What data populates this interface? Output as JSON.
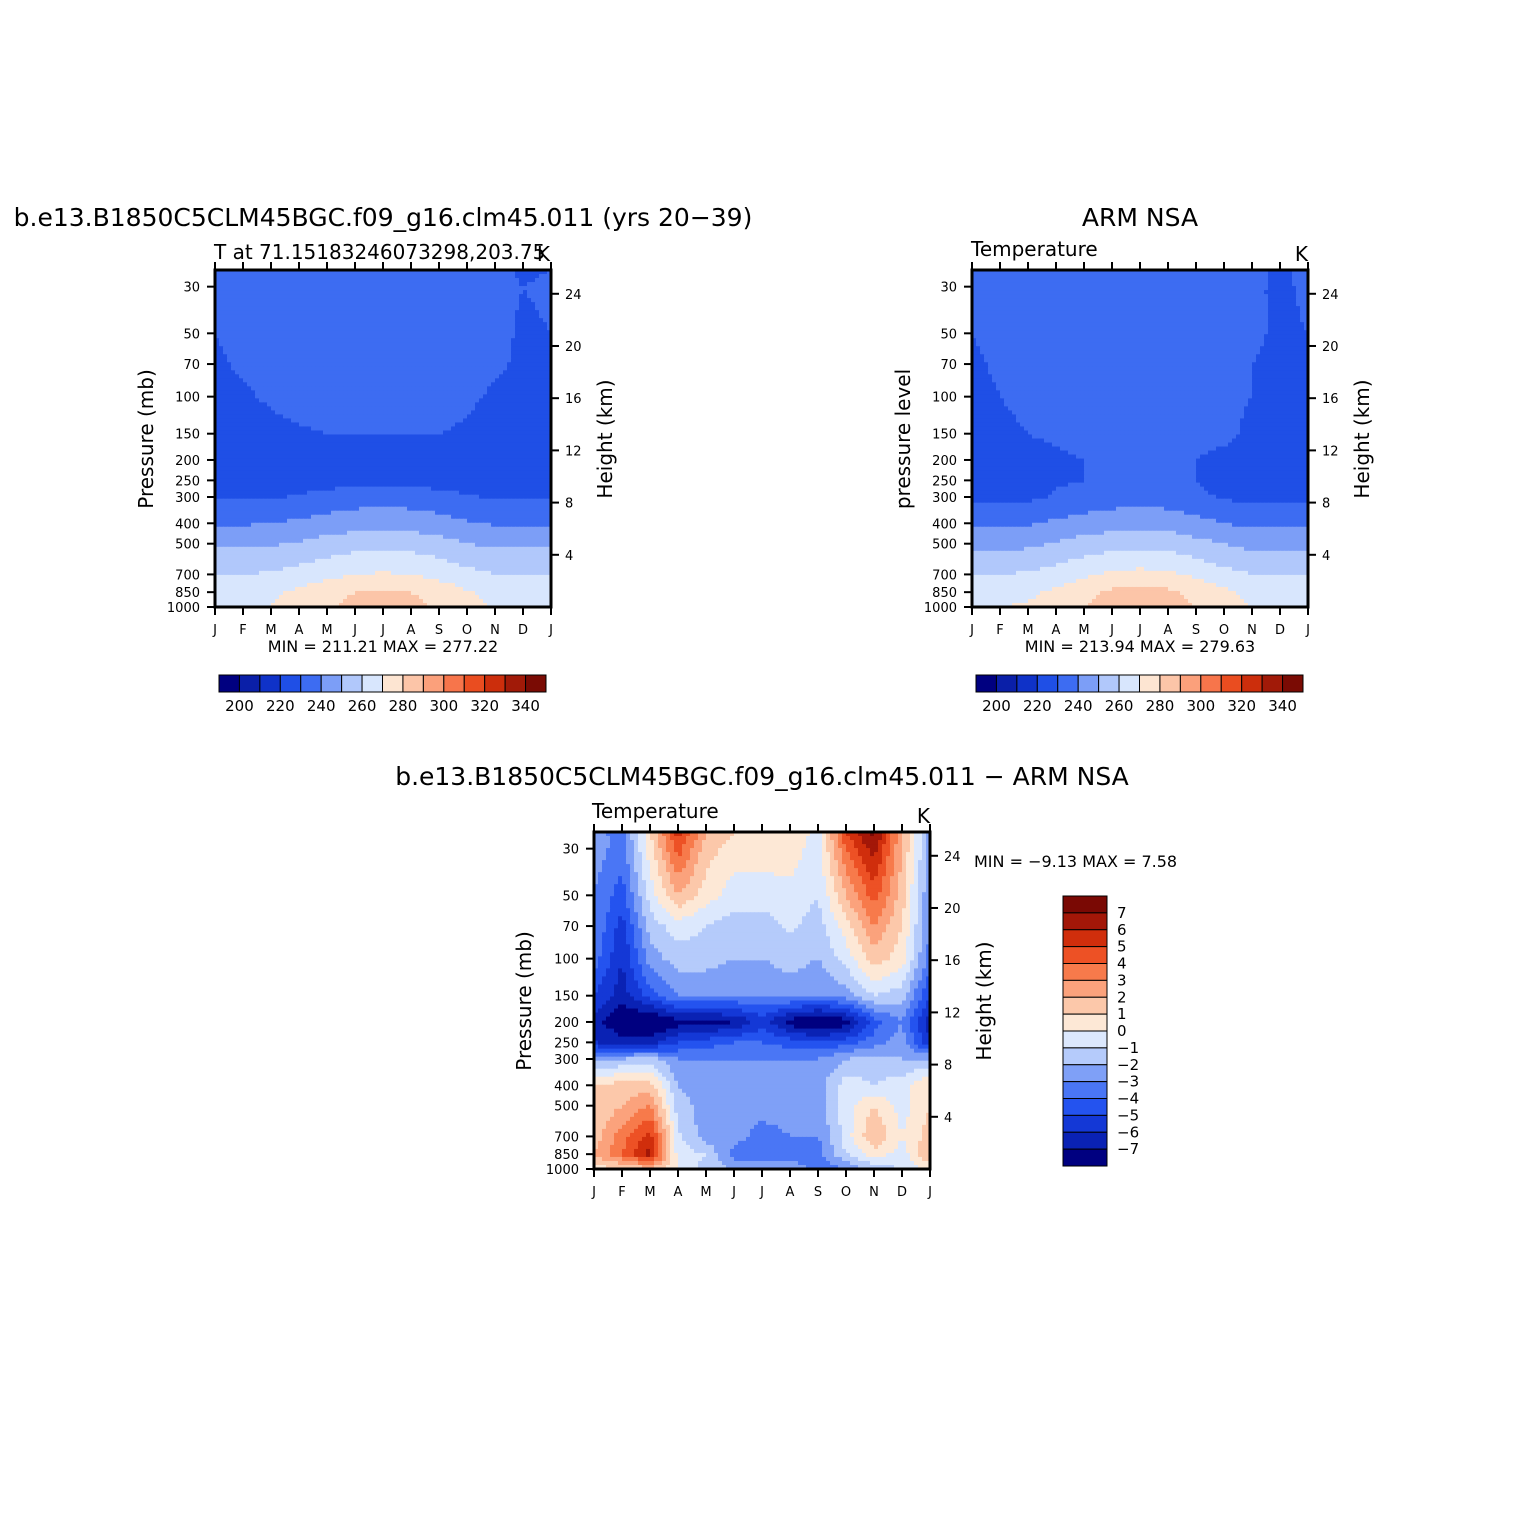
{
  "colors": {
    "temp_levels": [
      "#000080",
      "#0a1fa8",
      "#0f32c8",
      "#1f4fe6",
      "#3d6cf2",
      "#7c9ef7",
      "#b1c8fb",
      "#d8e6fd",
      "#fde5d2",
      "#fcc5a8",
      "#fba07b",
      "#f7754b",
      "#ea4d20",
      "#cc2e0c",
      "#a11a08",
      "#7a0b04"
    ],
    "diff_levels": [
      "#000080",
      "#0a22b4",
      "#1438d6",
      "#2453ef",
      "#4a76f5",
      "#7fa0f7",
      "#b5cbfb",
      "#dce8fd",
      "#fde8d6",
      "#fcc8aa",
      "#fba27c",
      "#f77a4b",
      "#ed5125",
      "#d02e0c",
      "#a31708",
      "#7a0904"
    ]
  },
  "panels": [
    {
      "title": "b.e13.B1850C5CLM45BGC.f09_g16.clm45.011 (yrs 20−39)",
      "subtitle_left": "T at 71.15183246073298,203.75",
      "subtitle_right": "K",
      "ylabel": "Pressure (mb)",
      "ylabel_right": "Height (km)",
      "stats": "MIN = 211.21 MAX = 277.22"
    },
    {
      "title": "ARM NSA",
      "subtitle_left": "Temperature",
      "subtitle_right": "K",
      "ylabel": "pressure level",
      "ylabel_right": "Height (km)",
      "stats": "MIN = 213.94 MAX = 279.63"
    },
    {
      "title": "b.e13.B1850C5CLM45BGC.f09_g16.clm45.011 − ARM NSA",
      "subtitle_left": "Temperature",
      "subtitle_right": "K",
      "ylabel": "Pressure (mb)",
      "ylabel_right": "Height (km)",
      "stats": "MIN =   −9.13 MAX =    7.58"
    }
  ],
  "chart_data": [
    {
      "type": "heatmap",
      "title": "b.e13.B1850C5CLM45BGC.f09_g16.clm45.011 (yrs 20−39)",
      "subtitle": "T at 71.15183246073298,203.75",
      "units": "K",
      "x": [
        "J",
        "F",
        "M",
        "A",
        "M",
        "J",
        "J",
        "A",
        "S",
        "O",
        "N",
        "D",
        "J"
      ],
      "y_pressure_ticks": [
        "30",
        "50",
        "70",
        "100",
        "150",
        "200",
        "250",
        "300",
        "400",
        "500",
        "700",
        "850",
        "1000"
      ],
      "y_height_ticks": [
        "24",
        "20",
        "16",
        "12",
        "8",
        "4"
      ],
      "ylabel": "Pressure (mb)",
      "ylabel_right": "Height (km)",
      "pressure_levels": [
        25,
        30,
        50,
        70,
        100,
        150,
        200,
        250,
        300,
        400,
        500,
        700,
        850,
        1000
      ],
      "values": [
        [
          220,
          224,
          226,
          227,
          228,
          229,
          229,
          228,
          227,
          225,
          222,
          219,
          220
        ],
        [
          221,
          224,
          226,
          227,
          228,
          229,
          229,
          228,
          227,
          225,
          222,
          220,
          221
        ],
        [
          220,
          222,
          225,
          226,
          227,
          227,
          227,
          227,
          226,
          225,
          222,
          219,
          220
        ],
        [
          219,
          221,
          223,
          225,
          226,
          226,
          226,
          226,
          225,
          224,
          221,
          219,
          219
        ],
        [
          218,
          219,
          221,
          223,
          224,
          225,
          224,
          224,
          223,
          221,
          219,
          218,
          218
        ],
        [
          216,
          217,
          218,
          219,
          220,
          220,
          220,
          220,
          220,
          219,
          218,
          217,
          216
        ],
        [
          215,
          216,
          216,
          216,
          216,
          217,
          218,
          217,
          216,
          216,
          216,
          215,
          215
        ],
        [
          214,
          214,
          214,
          215,
          216,
          217,
          218,
          217,
          216,
          215,
          214,
          214,
          214
        ],
        [
          219,
          219,
          219,
          221,
          223,
          225,
          226,
          225,
          223,
          221,
          219,
          219,
          219
        ],
        [
          229,
          229,
          230,
          232,
          234,
          236,
          237,
          236,
          234,
          231,
          229,
          229,
          229
        ],
        [
          238,
          238,
          239,
          241,
          244,
          246,
          247,
          246,
          244,
          240,
          238,
          238,
          238
        ],
        [
          250,
          250,
          251,
          254,
          257,
          260,
          261,
          260,
          257,
          253,
          250,
          250,
          250
        ],
        [
          257,
          257,
          258,
          262,
          266,
          270,
          271,
          270,
          266,
          261,
          257,
          257,
          257
        ],
        [
          259,
          259,
          260,
          264,
          268,
          273,
          274,
          273,
          268,
          263,
          259,
          259,
          259
        ]
      ],
      "colorbar_ticks": [
        "200",
        "220",
        "240",
        "260",
        "280",
        "300",
        "320",
        "340"
      ],
      "levels": [
        195,
        200,
        210,
        220,
        230,
        240,
        250,
        260,
        270,
        280,
        290,
        300,
        310,
        320,
        330,
        340
      ],
      "min": 211.21,
      "max": 277.22
    },
    {
      "type": "heatmap",
      "title": "ARM NSA",
      "subtitle": "Temperature",
      "units": "K",
      "x": [
        "J",
        "F",
        "M",
        "A",
        "M",
        "J",
        "J",
        "A",
        "S",
        "O",
        "N",
        "D",
        "J"
      ],
      "y_pressure_ticks": [
        "30",
        "50",
        "70",
        "100",
        "150",
        "200",
        "250",
        "300",
        "400",
        "500",
        "700",
        "850",
        "1000"
      ],
      "y_height_ticks": [
        "24",
        "20",
        "16",
        "12",
        "8",
        "4"
      ],
      "ylabel": "pressure level",
      "ylabel_right": "Height (km)",
      "pressure_levels": [
        25,
        30,
        50,
        70,
        100,
        150,
        200,
        250,
        300,
        400,
        500,
        700,
        850,
        1000
      ],
      "values": [
        [
          221,
          222,
          224,
          225,
          226,
          227,
          228,
          227,
          226,
          223,
          221,
          219,
          221
        ],
        [
          221,
          222,
          224,
          225,
          226,
          227,
          227,
          226,
          225,
          223,
          221,
          219,
          221
        ],
        [
          220,
          222,
          223,
          224,
          225,
          226,
          226,
          225,
          224,
          222,
          221,
          219,
          220
        ],
        [
          219,
          221,
          222,
          223,
          224,
          224,
          224,
          224,
          223,
          222,
          220,
          219,
          219
        ],
        [
          218,
          220,
          221,
          222,
          223,
          223,
          223,
          223,
          222,
          221,
          220,
          219,
          218
        ],
        [
          217,
          219,
          220,
          221,
          222,
          222,
          222,
          222,
          221,
          221,
          219,
          218,
          217
        ],
        [
          216,
          217,
          218,
          219,
          220,
          220,
          220,
          220,
          220,
          219,
          218,
          217,
          216
        ],
        [
          214,
          215,
          216,
          219,
          220,
          220,
          220,
          220,
          220,
          216,
          215,
          214,
          214
        ],
        [
          217,
          217,
          218,
          221,
          223,
          225,
          226,
          225,
          222,
          219,
          217,
          217,
          217
        ],
        [
          228,
          228,
          229,
          232,
          234,
          236,
          237,
          236,
          233,
          230,
          228,
          228,
          228
        ],
        [
          237,
          237,
          238,
          241,
          244,
          246,
          247,
          246,
          243,
          240,
          237,
          237,
          237
        ],
        [
          250,
          250,
          251,
          254,
          258,
          262,
          263,
          262,
          258,
          253,
          250,
          250,
          250
        ],
        [
          257,
          257,
          258,
          262,
          267,
          272,
          274,
          272,
          267,
          262,
          257,
          257,
          257
        ],
        [
          260,
          260,
          261,
          265,
          270,
          275,
          277,
          275,
          270,
          265,
          260,
          260,
          260
        ]
      ],
      "colorbar_ticks": [
        "200",
        "220",
        "240",
        "260",
        "280",
        "300",
        "320",
        "340"
      ],
      "levels": [
        195,
        200,
        210,
        220,
        230,
        240,
        250,
        260,
        270,
        280,
        290,
        300,
        310,
        320,
        330,
        340
      ],
      "min": 213.94,
      "max": 279.63
    },
    {
      "type": "heatmap",
      "title": "b.e13.B1850C5CLM45BGC.f09_g16.clm45.011 − ARM NSA",
      "subtitle": "Temperature",
      "units": "K",
      "x": [
        "J",
        "F",
        "M",
        "A",
        "M",
        "J",
        "J",
        "A",
        "S",
        "O",
        "N",
        "D",
        "J"
      ],
      "y_pressure_ticks": [
        "30",
        "50",
        "70",
        "100",
        "150",
        "200",
        "250",
        "300",
        "400",
        "500",
        "700",
        "850",
        "1000"
      ],
      "y_height_ticks": [
        "24",
        "20",
        "16",
        "12",
        "8",
        "4"
      ],
      "ylabel": "Pressure (mb)",
      "ylabel_right": "Height (km)",
      "pressure_levels": [
        25,
        30,
        50,
        70,
        100,
        150,
        200,
        250,
        300,
        400,
        500,
        700,
        850,
        1000
      ],
      "values": [
        [
          -2.5,
          -3.5,
          1.0,
          5.5,
          2.0,
          1.0,
          1.0,
          1.0,
          -0.5,
          5.0,
          7.5,
          2.0,
          -2.5
        ],
        [
          -2.5,
          -3.5,
          0.5,
          4.5,
          1.5,
          0.5,
          0.5,
          0.5,
          -0.5,
          4.0,
          6.5,
          2.0,
          -2.5
        ],
        [
          -3.0,
          -4.5,
          -0.5,
          2.0,
          0.5,
          -0.5,
          -0.5,
          -0.3,
          -1.0,
          2.0,
          4.5,
          1.5,
          -3.0
        ],
        [
          -3.0,
          -5.5,
          -1.5,
          -0.5,
          -1.0,
          -1.5,
          -1.5,
          -0.8,
          -1.5,
          0.5,
          3.0,
          1.0,
          -3.0
        ],
        [
          -3.5,
          -6.0,
          -2.5,
          -1.5,
          -1.5,
          -2.0,
          -2.0,
          -1.5,
          -2.0,
          -0.5,
          1.5,
          0.5,
          -3.5
        ],
        [
          -5.0,
          -6.5,
          -4.5,
          -3.0,
          -3.0,
          -3.0,
          -3.0,
          -2.8,
          -3.0,
          -2.5,
          -1.0,
          -1.5,
          -5.0
        ],
        [
          -6.5,
          -8.0,
          -8.5,
          -7.5,
          -7.5,
          -7.0,
          -5.5,
          -7.5,
          -8.5,
          -7.5,
          -4.5,
          -3.0,
          -6.5
        ],
        [
          -6.0,
          -6.5,
          -6.5,
          -5.0,
          -4.5,
          -4.0,
          -4.0,
          -4.5,
          -5.0,
          -4.5,
          -3.5,
          -2.5,
          -6.0
        ],
        [
          -2.0,
          -2.0,
          -1.5,
          -3.0,
          -3.0,
          -3.0,
          -3.0,
          -3.0,
          -3.0,
          -2.0,
          -1.5,
          -2.0,
          -2.0
        ],
        [
          1.0,
          1.5,
          1.5,
          -2.0,
          -2.5,
          -2.5,
          -2.5,
          -2.5,
          -2.5,
          -0.5,
          -1.0,
          -0.5,
          1.0
        ],
        [
          1.0,
          2.0,
          3.0,
          -1.5,
          -2.5,
          -2.5,
          -2.5,
          -2.5,
          -2.5,
          -0.5,
          1.0,
          -0.5,
          1.0
        ],
        [
          1.5,
          3.5,
          5.5,
          -0.8,
          -2.5,
          -2.5,
          -3.5,
          -3.0,
          -3.0,
          -0.5,
          2.0,
          0.0,
          1.5
        ],
        [
          2.0,
          4.0,
          6.5,
          -0.5,
          -1.0,
          -3.5,
          -4.0,
          -4.0,
          -3.5,
          -1.0,
          0.5,
          -0.5,
          2.0
        ],
        [
          0.5,
          1.0,
          1.5,
          0.0,
          -1.5,
          -2.0,
          -2.0,
          -2.0,
          -3.5,
          -3.0,
          -1.5,
          -1.0,
          0.5
        ]
      ],
      "colorbar_ticks": [
        "7",
        "6",
        "5",
        "4",
        "3",
        "2",
        "1",
        "0",
        "−1",
        "−2",
        "−3",
        "−4",
        "−5",
        "−6",
        "−7"
      ],
      "levels": [
        -7,
        -6,
        -5,
        -4,
        -3,
        -2,
        -1,
        0,
        1,
        2,
        3,
        4,
        5,
        6,
        7
      ],
      "min": -9.13,
      "max": 7.58
    }
  ]
}
